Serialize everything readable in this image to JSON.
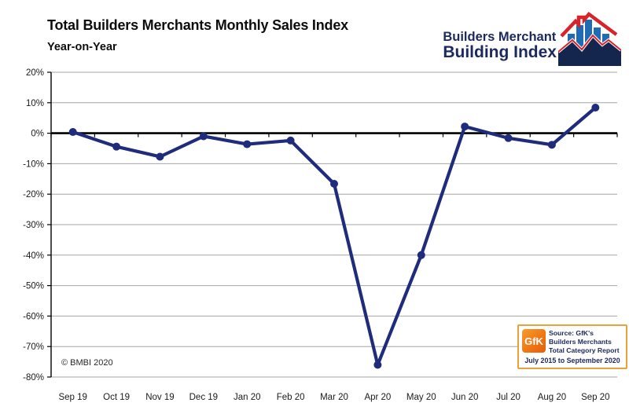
{
  "title": "Total Builders Merchants Monthly Sales Index",
  "subtitle": "Year-on-Year",
  "copyright": "© BMBI 2020",
  "logo": {
    "line1": "Builders Merchant",
    "line2": "Building Index"
  },
  "source_box": {
    "gfk_label": "GfK",
    "line1": "Source: GfK's",
    "line2": "Builders Merchants",
    "line3": "Total Category Report",
    "line4": "July 2015 to September 2020"
  },
  "colors": {
    "series_line": "#1f2c7c",
    "grid": "#a6a6a6",
    "axis": "#000000",
    "tick_label": "#1a1a1a",
    "logo_navy": "#1b2a5e",
    "logo_bar_blue": "#1f6cb4",
    "logo_red": "#d8232a",
    "gfk_orange": "#ef7412",
    "source_border": "#e9a23b"
  },
  "chart_data": {
    "type": "line",
    "title": "Total Builders Merchants Monthly Sales Index",
    "subtitle": "Year-on-Year",
    "xlabel": "",
    "ylabel": "",
    "categories": [
      "Sep 19",
      "Oct 19",
      "Nov 19",
      "Dec 19",
      "Jan 20",
      "Feb 20",
      "Mar 20",
      "Apr 20",
      "May 20",
      "Jun 20",
      "Jul 20",
      "Aug 20",
      "Sep 20"
    ],
    "values": [
      0.4,
      -4.4,
      -7.7,
      -1.0,
      -3.6,
      -2.4,
      -16.6,
      -76.0,
      -40.0,
      2.2,
      -1.6,
      -3.8,
      8.4
    ],
    "unit": "%",
    "ylim": [
      -80,
      20
    ],
    "ytick_step": 10,
    "ytick_labels": [
      "20%",
      "10%",
      "0%",
      "-10%",
      "-20%",
      "-30%",
      "-40%",
      "-50%",
      "-60%",
      "-70%",
      "-80%"
    ],
    "grid": true,
    "legend": false,
    "zero_axis_emphasized": true
  }
}
